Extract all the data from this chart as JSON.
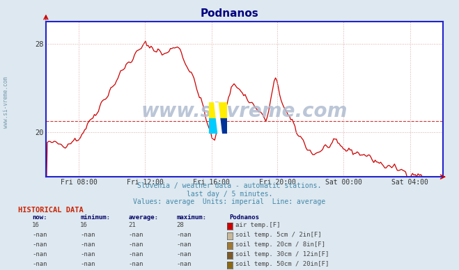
{
  "title": "Podnanos",
  "title_color": "#000080",
  "bg_color": "#dde8f0",
  "plot_bg_color": "#ffffff",
  "line_color": "#cc0000",
  "average_line_color": "#cc0000",
  "average_value": 21,
  "y_min": 16,
  "y_max": 30,
  "y_ticks": [
    20,
    28
  ],
  "x_ticks_labels": [
    "Fri 08:00",
    "Fri 12:00",
    "Fri 16:00",
    "Fri 20:00",
    "Sat 00:00",
    "Sat 04:00"
  ],
  "x_ticks_positions": [
    0.083,
    0.25,
    0.417,
    0.583,
    0.75,
    0.917
  ],
  "subtitle1": "Slovenia / weather data - automatic stations.",
  "subtitle2": "last day / 5 minutes.",
  "subtitle3": "Values: average  Units: imperial  Line: average",
  "subtitle_color": "#4488aa",
  "watermark": "www.si-vreme.com",
  "watermark_color": "#b0bcd0",
  "left_label": "www.si-vreme.com",
  "left_label_color": "#7799aa",
  "hist_title": "HISTORICAL DATA",
  "hist_title_color": "#cc2200",
  "col_headers": [
    "now:",
    "minimum:",
    "average:",
    "maximum:",
    "Podnanos"
  ],
  "rows": [
    {
      "now": "16",
      "min": "16",
      "avg": "21",
      "max": "28",
      "label": "air temp.[F]",
      "color": "#cc0000"
    },
    {
      "now": "-nan",
      "min": "-nan",
      "avg": "-nan",
      "max": "-nan",
      "label": "soil temp. 5cm / 2in[F]",
      "color": "#c8b89a"
    },
    {
      "now": "-nan",
      "min": "-nan",
      "avg": "-nan",
      "max": "-nan",
      "label": "soil temp. 20cm / 8in[F]",
      "color": "#a07832"
    },
    {
      "now": "-nan",
      "min": "-nan",
      "avg": "-nan",
      "max": "-nan",
      "label": "soil temp. 30cm / 12in[F]",
      "color": "#7d5a28"
    },
    {
      "now": "-nan",
      "min": "-nan",
      "avg": "-nan",
      "max": "-nan",
      "label": "soil temp. 50cm / 20in[F]",
      "color": "#8b6914"
    }
  ],
  "grid_color": "#ddaaaa",
  "axis_color": "#2222cc",
  "arrow_color": "#cc0000",
  "logo_colors": {
    "yellow": "#ffee00",
    "cyan": "#00ccff",
    "dark_blue": "#003399",
    "mid_blue": "#1155aa"
  }
}
